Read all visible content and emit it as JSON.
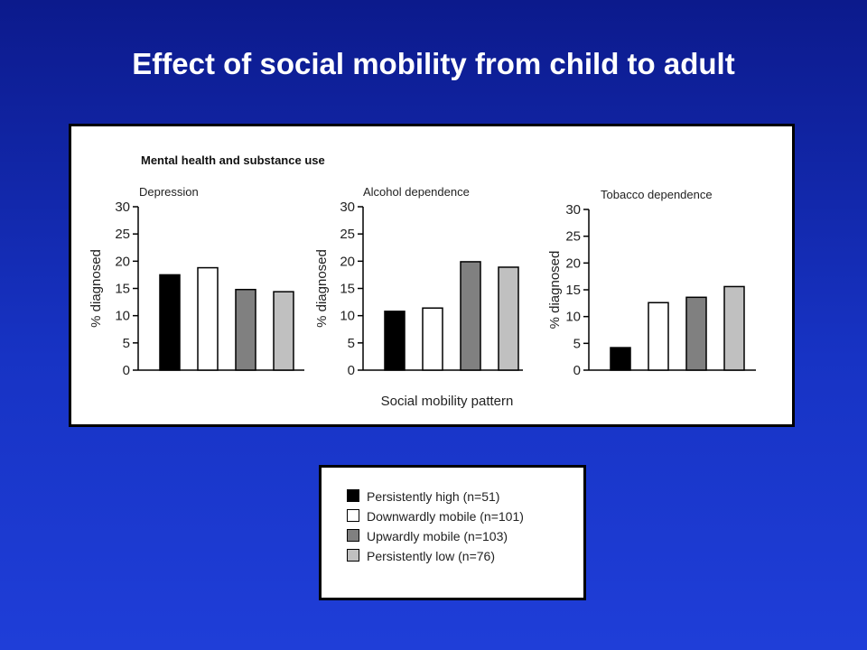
{
  "slide": {
    "title": "Effect of social mobility from child to adult"
  },
  "chart_data": {
    "type": "bar",
    "figure_title": "Mental health and substance use",
    "xlabel": "Social mobility pattern",
    "ylabel": "% diagnosed",
    "ylim": [
      0,
      30
    ],
    "yticks": [
      "0",
      "5",
      "10",
      "15",
      "20",
      "25",
      "30"
    ],
    "grid": false,
    "legend_position": "bottom",
    "series": [
      {
        "name": "Persistently high (n=51)",
        "color": "#000000"
      },
      {
        "name": "Downwardly mobile (n=101)",
        "color": "#ffffff"
      },
      {
        "name": "Upwardly mobile (n=103)",
        "color": "#808080"
      },
      {
        "name": "Persistently low (n=76)",
        "color": "#c0c0c0"
      }
    ],
    "panels": [
      {
        "title": "Depression",
        "values": [
          17.5,
          18.8,
          14.8,
          14.4
        ]
      },
      {
        "title": "Alcohol dependence",
        "values": [
          10.8,
          11.4,
          19.9,
          18.9
        ]
      },
      {
        "title": "Tobacco dependence",
        "values": [
          4.2,
          12.6,
          13.6,
          15.6
        ]
      }
    ]
  }
}
